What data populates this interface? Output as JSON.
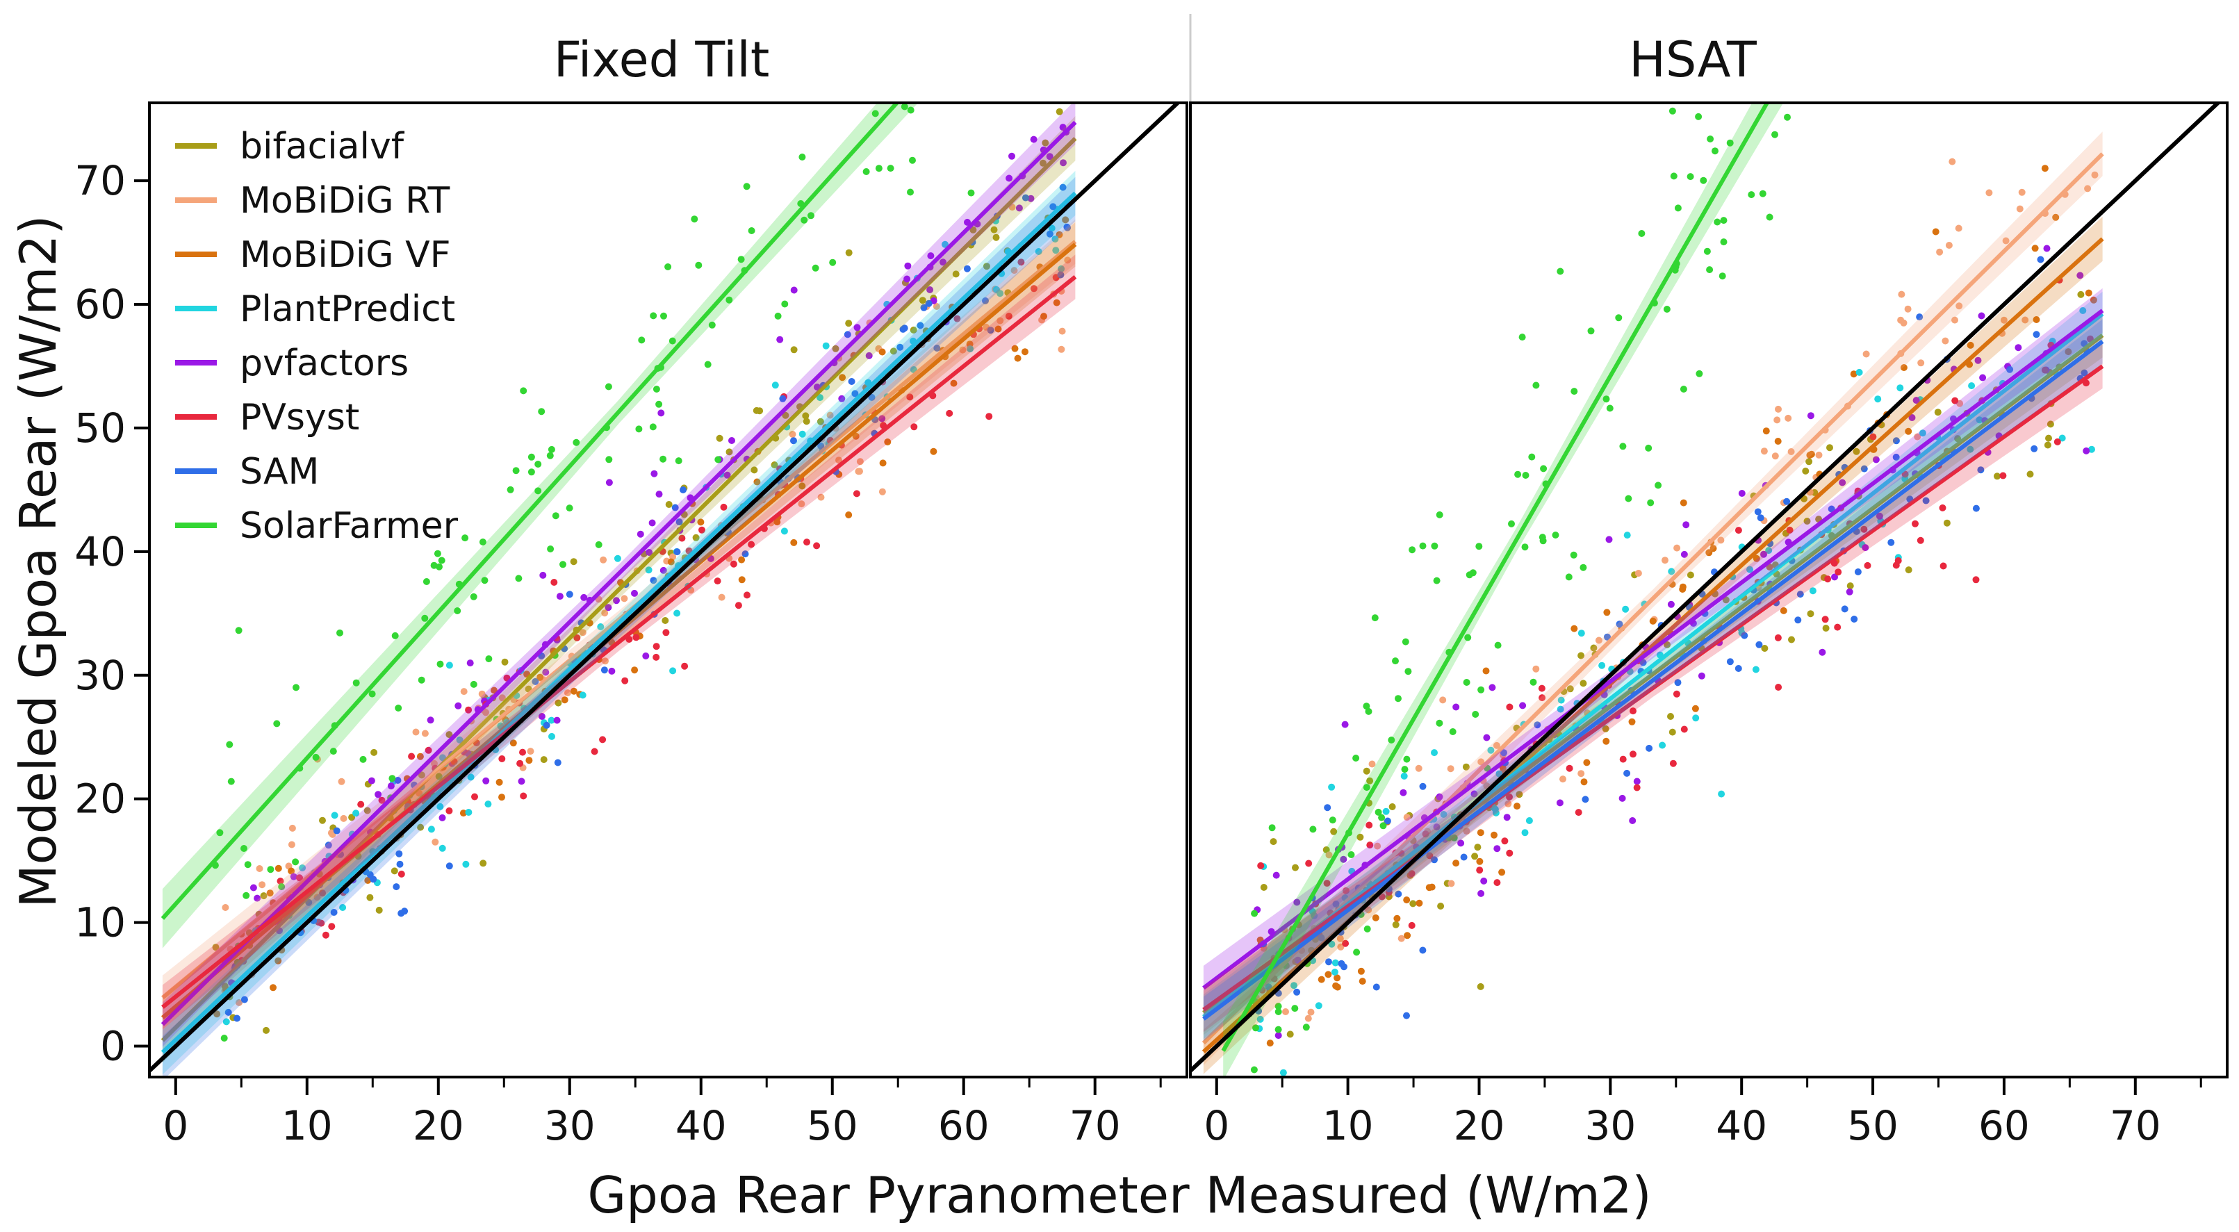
{
  "chart_data": [
    {
      "type": "scatter",
      "title": "Fixed Tilt",
      "xlabel": "Gpoa Rear Pyranometer Measured (W/m2)",
      "ylabel": "Modeled Gpoa Rear (W/m2)",
      "xlim": [
        -2,
        77
      ],
      "ylim": [
        -2.5,
        76.3
      ],
      "xticks": [
        0,
        10,
        20,
        30,
        40,
        50,
        60,
        70
      ],
      "yticks": [
        0,
        10,
        20,
        30,
        40,
        50,
        60,
        70
      ],
      "reference_line": "y = x",
      "legend_position": "top-left",
      "series": [
        {
          "name": "bifacialvf",
          "color": "#a89d18",
          "x_range": [
            3,
            68
          ],
          "fit": {
            "slope": 1.05,
            "intercept": 1.5
          },
          "noise": 3.5
        },
        {
          "name": "MoBiDiG RT",
          "color": "#f5a57a",
          "x_range": [
            3,
            68
          ],
          "fit": {
            "slope": 0.88,
            "intercept": 4.8
          },
          "noise": 3.5
        },
        {
          "name": "MoBiDiG VF",
          "color": "#d9720f",
          "x_range": [
            3,
            68
          ],
          "fit": {
            "slope": 0.9,
            "intercept": 3.2
          },
          "noise": 3.5
        },
        {
          "name": "PlantPredict",
          "color": "#21d5e0",
          "x_range": [
            3,
            68
          ],
          "fit": {
            "slope": 1.0,
            "intercept": 0.5
          },
          "noise": 3.5
        },
        {
          "name": "pvfactors",
          "color": "#9a18e6",
          "x_range": [
            3,
            68
          ],
          "fit": {
            "slope": 1.05,
            "intercept": 2.8
          },
          "noise": 3.5
        },
        {
          "name": "PVsyst",
          "color": "#e8283e",
          "x_range": [
            3,
            68
          ],
          "fit": {
            "slope": 0.85,
            "intercept": 4.0
          },
          "noise": 3.5
        },
        {
          "name": "SAM",
          "color": "#2f6ee8",
          "x_range": [
            3,
            68
          ],
          "fit": {
            "slope": 1.0,
            "intercept": 0.0
          },
          "noise": 3.5
        },
        {
          "name": "SolarFarmer",
          "color": "#33d633",
          "x_range": [
            3,
            62
          ],
          "fit": {
            "slope": 1.18,
            "intercept": 11.5
          },
          "noise": 6.5
        }
      ]
    },
    {
      "type": "scatter",
      "title": "HSAT",
      "xlabel": "Gpoa Rear Pyranometer Measured (W/m2)",
      "ylabel": "Modeled Gpoa Rear (W/m2)",
      "xlim": [
        -2,
        77
      ],
      "ylim": [
        -2.5,
        76.3
      ],
      "xticks": [
        0,
        10,
        20,
        30,
        40,
        50,
        60,
        70
      ],
      "yticks": [
        0,
        10,
        20,
        30,
        40,
        50,
        60,
        70
      ],
      "reference_line": "y = x",
      "series": [
        {
          "name": "bifacialvf",
          "color": "#a89d18",
          "x_range": [
            3,
            67
          ],
          "fit": {
            "slope": 0.8,
            "intercept": 3.5
          },
          "noise": 4.5
        },
        {
          "name": "MoBiDiG RT",
          "color": "#f5a57a",
          "x_range": [
            3,
            67
          ],
          "fit": {
            "slope": 1.05,
            "intercept": 1.3
          },
          "noise": 4.5
        },
        {
          "name": "MoBiDiG VF",
          "color": "#d9720f",
          "x_range": [
            3,
            67
          ],
          "fit": {
            "slope": 0.96,
            "intercept": 0.5
          },
          "noise": 4.5
        },
        {
          "name": "PlantPredict",
          "color": "#21d5e0",
          "x_range": [
            3,
            67
          ],
          "fit": {
            "slope": 0.83,
            "intercept": 3.2
          },
          "noise": 4.5
        },
        {
          "name": "pvfactors",
          "color": "#9a18e6",
          "x_range": [
            3,
            67
          ],
          "fit": {
            "slope": 0.8,
            "intercept": 5.5
          },
          "noise": 4.5
        },
        {
          "name": "PVsyst",
          "color": "#e8283e",
          "x_range": [
            3,
            67
          ],
          "fit": {
            "slope": 0.76,
            "intercept": 3.7
          },
          "noise": 4.5
        },
        {
          "name": "SAM",
          "color": "#2f6ee8",
          "x_range": [
            3,
            67
          ],
          "fit": {
            "slope": 0.8,
            "intercept": 3.0
          },
          "noise": 4.5
        },
        {
          "name": "SolarFarmer",
          "color": "#33d633",
          "x_range": [
            2,
            44
          ],
          "fit": {
            "slope": 1.85,
            "intercept": -1.3
          },
          "noise": 7.0
        }
      ]
    }
  ]
}
